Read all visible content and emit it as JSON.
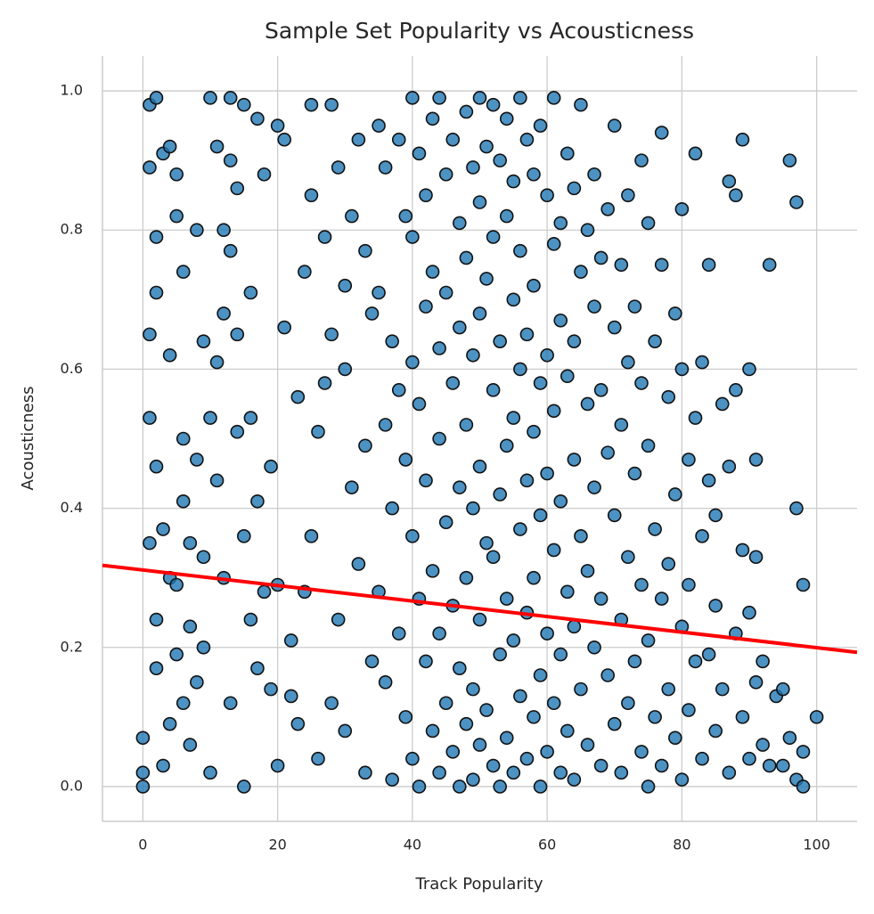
{
  "chart_data": {
    "type": "scatter",
    "title": "Sample Set Popularity vs Acousticness",
    "x_label": "Track Popularity",
    "y_label": "Acousticness",
    "color": "#1f77b4",
    "grid": true,
    "xlim": [
      -6,
      106
    ],
    "ylim": [
      -0.05,
      1.05
    ],
    "xticks": [
      0,
      20,
      40,
      60,
      80,
      100
    ],
    "yticks": [
      {
        "value": 0,
        "label": "0.0"
      },
      0.2,
      0.4,
      0.6,
      0.8,
      {
        "value": 1,
        "label": "1.0"
      }
    ],
    "x": [
      0,
      0,
      0,
      1,
      1,
      1,
      1,
      1,
      2,
      2,
      2,
      2,
      2,
      2,
      3,
      3,
      3,
      4,
      4,
      4,
      4,
      5,
      5,
      5,
      5,
      6,
      6,
      6,
      6,
      7,
      7,
      7,
      8,
      8,
      8,
      9,
      9,
      9,
      10,
      10,
      10,
      11,
      11,
      11,
      12,
      12,
      12,
      13,
      13,
      13,
      13,
      14,
      14,
      14,
      15,
      15,
      15,
      16,
      16,
      16,
      17,
      17,
      17,
      18,
      18,
      19,
      19,
      20,
      20,
      20,
      21,
      21,
      22,
      22,
      23,
      23,
      24,
      24,
      25,
      25,
      25,
      26,
      26,
      27,
      27,
      28,
      28,
      28,
      29,
      29,
      30,
      30,
      30,
      31,
      31,
      32,
      32,
      33,
      33,
      33,
      34,
      34,
      35,
      35,
      35,
      36,
      36,
      36,
      37,
      37,
      37,
      38,
      38,
      38,
      39,
      39,
      39,
      40,
      40,
      40,
      40,
      40,
      41,
      41,
      41,
      41,
      42,
      42,
      42,
      42,
      43,
      43,
      43,
      43,
      44,
      44,
      44,
      44,
      44,
      45,
      45,
      45,
      45,
      46,
      46,
      46,
      46,
      47,
      47,
      47,
      47,
      47,
      48,
      48,
      48,
      48,
      48,
      49,
      49,
      49,
      49,
      49,
      50,
      50,
      50,
      50,
      50,
      50,
      51,
      51,
      51,
      51,
      52,
      52,
      52,
      52,
      52,
      53,
      53,
      53,
      53,
      53,
      54,
      54,
      54,
      54,
      54,
      55,
      55,
      55,
      55,
      55,
      56,
      56,
      56,
      56,
      56,
      57,
      57,
      57,
      57,
      57,
      58,
      58,
      58,
      58,
      58,
      59,
      59,
      59,
      59,
      59,
      60,
      60,
      60,
      60,
      60,
      61,
      61,
      61,
      61,
      61,
      62,
      62,
      62,
      62,
      62,
      63,
      63,
      63,
      63,
      64,
      64,
      64,
      64,
      64,
      65,
      65,
      65,
      65,
      66,
      66,
      66,
      66,
      67,
      67,
      67,
      67,
      68,
      68,
      68,
      68,
      69,
      69,
      69,
      70,
      70,
      70,
      70,
      71,
      71,
      71,
      71,
      72,
      72,
      72,
      72,
      73,
      73,
      73,
      74,
      74,
      74,
      74,
      75,
      75,
      75,
      75,
      76,
      76,
      76,
      77,
      77,
      77,
      77,
      78,
      78,
      78,
      79,
      79,
      79,
      80,
      80,
      80,
      80,
      81,
      81,
      81,
      82,
      82,
      82,
      83,
      83,
      83,
      84,
      84,
      84,
      85,
      85,
      85,
      86,
      86,
      87,
      87,
      87,
      88,
      88,
      88,
      89,
      89,
      89,
      90,
      90,
      90,
      91,
      91,
      91,
      92,
      92,
      93,
      93,
      94,
      95,
      95,
      96,
      96,
      97,
      97,
      97,
      98,
      98,
      98,
      100
    ],
    "values": [
      0,
      0.02,
      0.07,
      0.98,
      0.89,
      0.65,
      0.53,
      0.35,
      0.99,
      0.79,
      0.71,
      0.46,
      0.24,
      0.17,
      0.91,
      0.37,
      0.03,
      0.92,
      0.62,
      0.3,
      0.09,
      0.88,
      0.82,
      0.29,
      0.19,
      0.74,
      0.5,
      0.41,
      0.12,
      0.35,
      0.23,
      0.06,
      0.8,
      0.47,
      0.15,
      0.64,
      0.33,
      0.2,
      0.99,
      0.53,
      0.02,
      0.92,
      0.61,
      0.44,
      0.8,
      0.68,
      0.3,
      0.99,
      0.9,
      0.77,
      0.12,
      0.86,
      0.65,
      0.51,
      0.98,
      0.36,
      0,
      0.71,
      0.53,
      0.24,
      0.96,
      0.41,
      0.17,
      0.88,
      0.28,
      0.46,
      0.14,
      0.95,
      0.29,
      0.03,
      0.93,
      0.66,
      0.21,
      0.13,
      0.56,
      0.09,
      0.74,
      0.28,
      0.98,
      0.85,
      0.36,
      0.51,
      0.04,
      0.79,
      0.58,
      0.98,
      0.65,
      0.12,
      0.89,
      0.24,
      0.72,
      0.6,
      0.08,
      0.82,
      0.43,
      0.93,
      0.32,
      0.77,
      0.49,
      0.02,
      0.68,
      0.18,
      0.95,
      0.71,
      0.28,
      0.89,
      0.52,
      0.15,
      0.64,
      0.4,
      0.01,
      0.93,
      0.57,
      0.22,
      0.82,
      0.47,
      0.1,
      0.99,
      0.79,
      0.61,
      0.36,
      0.04,
      0.91,
      0.55,
      0.27,
      0,
      0.85,
      0.69,
      0.44,
      0.18,
      0.96,
      0.74,
      0.31,
      0.08,
      0.99,
      0.63,
      0.5,
      0.22,
      0.02,
      0.88,
      0.71,
      0.38,
      0.12,
      0.93,
      0.58,
      0.26,
      0.05,
      0.81,
      0.66,
      0.43,
      0.17,
      0,
      0.97,
      0.76,
      0.52,
      0.3,
      0.09,
      0.89,
      0.62,
      0.4,
      0.14,
      0.01,
      0.99,
      0.84,
      0.68,
      0.46,
      0.24,
      0.06,
      0.92,
      0.73,
      0.35,
      0.11,
      0.98,
      0.79,
      0.57,
      0.33,
      0.03,
      0.9,
      0.64,
      0.42,
      0.19,
      0,
      0.96,
      0.82,
      0.49,
      0.27,
      0.07,
      0.87,
      0.7,
      0.53,
      0.21,
      0.02,
      0.99,
      0.77,
      0.6,
      0.37,
      0.13,
      0.93,
      0.65,
      0.44,
      0.25,
      0.04,
      0.88,
      0.72,
      0.51,
      0.3,
      0.1,
      0.95,
      0.58,
      0.39,
      0.16,
      0,
      0.85,
      0.62,
      0.45,
      0.22,
      0.05,
      0.99,
      0.78,
      0.54,
      0.34,
      0.12,
      0.81,
      0.67,
      0.41,
      0.19,
      0.02,
      0.91,
      0.59,
      0.28,
      0.08,
      0.86,
      0.64,
      0.47,
      0.23,
      0.01,
      0.98,
      0.74,
      0.36,
      0.14,
      0.8,
      0.55,
      0.31,
      0.06,
      0.88,
      0.69,
      0.43,
      0.2,
      0.76,
      0.57,
      0.27,
      0.03,
      0.83,
      0.48,
      0.16,
      0.95,
      0.66,
      0.39,
      0.09,
      0.75,
      0.52,
      0.24,
      0.02,
      0.85,
      0.61,
      0.33,
      0.12,
      0.69,
      0.45,
      0.18,
      0.9,
      0.58,
      0.29,
      0.05,
      0.81,
      0.49,
      0.21,
      0,
      0.64,
      0.37,
      0.1,
      0.94,
      0.75,
      0.27,
      0.03,
      0.56,
      0.32,
      0.14,
      0.68,
      0.42,
      0.07,
      0.83,
      0.6,
      0.23,
      0.01,
      0.47,
      0.29,
      0.11,
      0.91,
      0.53,
      0.18,
      0.61,
      0.36,
      0.04,
      0.75,
      0.44,
      0.19,
      0.39,
      0.26,
      0.08,
      0.55,
      0.14,
      0.87,
      0.46,
      0.02,
      0.85,
      0.57,
      0.22,
      0.93,
      0.34,
      0.1,
      0.6,
      0.25,
      0.04,
      0.47,
      0.33,
      0.15,
      0.18,
      0.06,
      0.75,
      0.03,
      0.13,
      0.14,
      0.03,
      0.9,
      0.07,
      0.84,
      0.4,
      0.01,
      0.29,
      0.05,
      0,
      0.1
    ],
    "trend_line": {
      "x": [
        -6,
        106
      ],
      "values": [
        0.318,
        0.193
      ],
      "color": "#ff0000"
    }
  }
}
